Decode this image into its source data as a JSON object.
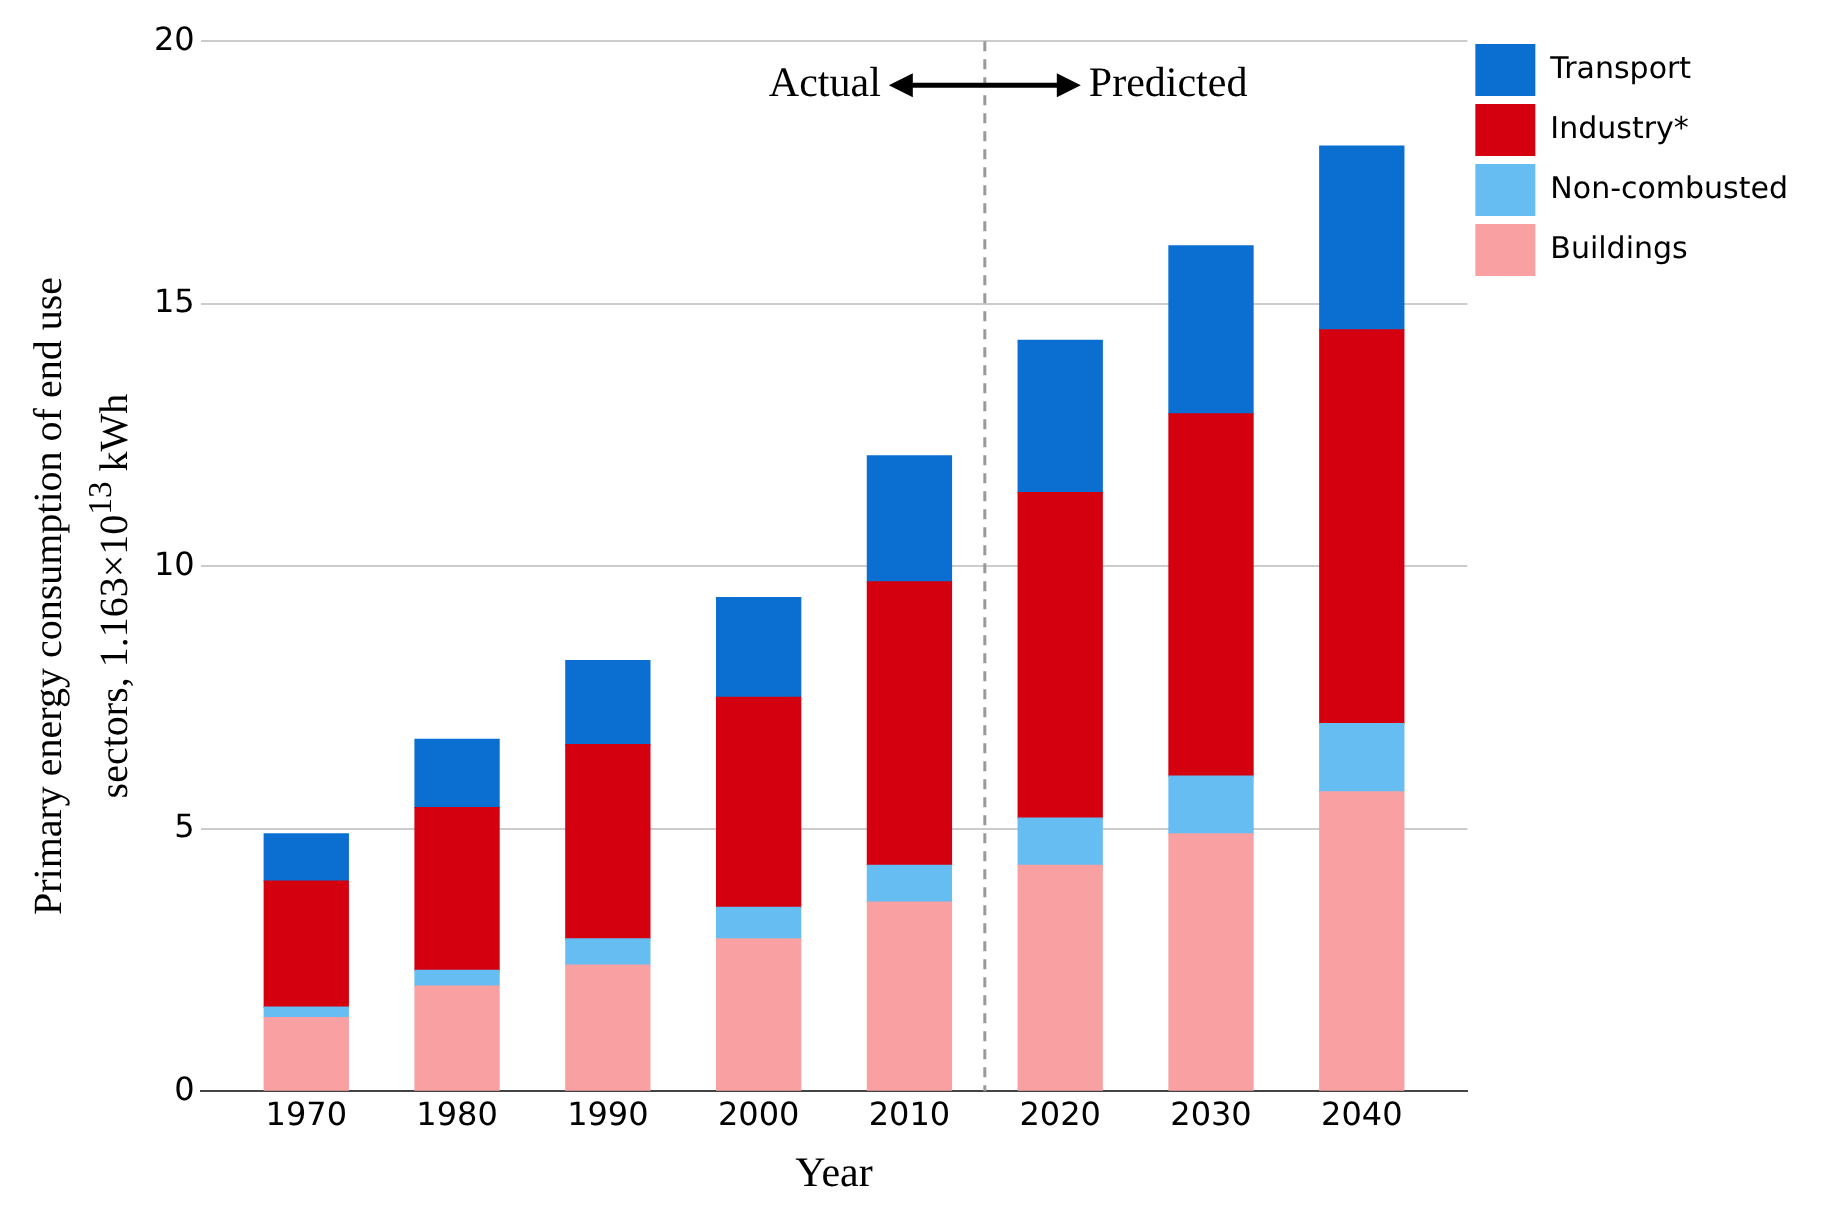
{
  "chart_data": {
    "type": "bar",
    "xlabel": "Year",
    "ylabel": "Primary energy consumption of end use sectors, 1.163×10$^{13}$ kWh",
    "x": [
      1970,
      1980,
      1990,
      2000,
      2010,
      2020,
      2030,
      2040
    ],
    "xlim": [
      1963,
      2047
    ],
    "xticks": [
      1970,
      1980,
      1990,
      2000,
      2010,
      2020,
      2030,
      2040
    ],
    "ylim": [
      0,
      20
    ],
    "yticks": [
      0,
      5,
      10,
      15,
      20
    ],
    "stacked": true,
    "grid": "y",
    "legend": "top right",
    "series": [
      {
        "name": "Buildings",
        "color": "#f9a0a2",
        "values": [
          1.4,
          2.0,
          2.4,
          2.9,
          3.6,
          4.3,
          4.9,
          5.7
        ]
      },
      {
        "name": "Non-combusted",
        "color": "#66bdf2",
        "values": [
          0.2,
          0.3,
          0.5,
          0.6,
          0.7,
          0.9,
          1.1,
          1.3
        ]
      },
      {
        "name": "Industry*",
        "color": "#d40010",
        "values": [
          2.4,
          3.1,
          3.7,
          4.0,
          5.4,
          6.2,
          6.9,
          7.5
        ]
      },
      {
        "name": "Transport",
        "color": "#0a6fd1",
        "values": [
          0.9,
          1.3,
          1.6,
          1.9,
          2.4,
          2.9,
          3.2,
          3.5
        ]
      }
    ],
    "ref_lines": [
      {
        "axis": "x",
        "value": 2015,
        "color": "#999999",
        "line_style": "dashed"
      }
    ],
    "annotations": [
      "Actual",
      "Predicted"
    ]
  }
}
